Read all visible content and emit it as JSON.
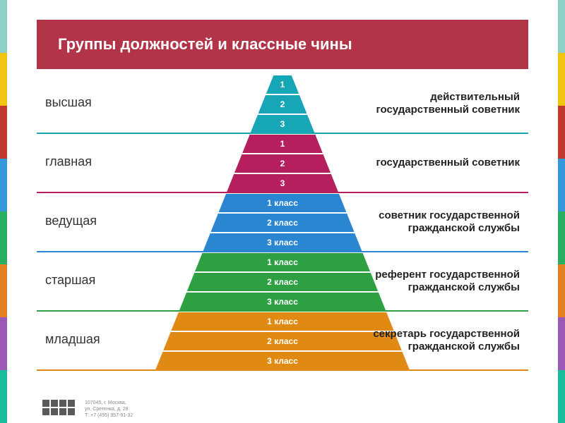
{
  "title": "Группы должностей и классные чины",
  "edge_colors": [
    "#8dd0c8",
    "#f1c40f",
    "#c0392b",
    "#3498db",
    "#27ae60",
    "#e67e22",
    "#9b59b6",
    "#1abc9c"
  ],
  "pyramid": {
    "width_start": 24,
    "width_end": 360,
    "layer_height": 28,
    "layers": [
      {
        "label": "1",
        "color": "#16a6b6"
      },
      {
        "label": "2",
        "color": "#16a6b6"
      },
      {
        "label": "3",
        "color": "#16a6b6"
      },
      {
        "label": "1",
        "color": "#b61f5e"
      },
      {
        "label": "2",
        "color": "#b61f5e"
      },
      {
        "label": "3",
        "color": "#b61f5e"
      },
      {
        "label": "1 класс",
        "color": "#2a86d1"
      },
      {
        "label": "2 класс",
        "color": "#2a86d1"
      },
      {
        "label": "3 класс",
        "color": "#2a86d1"
      },
      {
        "label": "1 класс",
        "color": "#2ea043"
      },
      {
        "label": "2 класс",
        "color": "#2ea043"
      },
      {
        "label": "3 класс",
        "color": "#2ea043"
      },
      {
        "label": "1 класс",
        "color": "#e08a14"
      },
      {
        "label": "2 класс",
        "color": "#e08a14"
      },
      {
        "label": "3 класс",
        "color": "#e08a14"
      }
    ]
  },
  "groups": [
    {
      "left": "высшая",
      "right": "действительный государственный советник",
      "sep_color": "#16a6b6"
    },
    {
      "left": "главная",
      "right": "государственный советник",
      "sep_color": "#b61f5e"
    },
    {
      "left": "ведущая",
      "right": "советник государственной гражданской службы",
      "sep_color": "#2a86d1"
    },
    {
      "left": "старшая",
      "right": "референт государственной гражданской службы",
      "sep_color": "#2ea043"
    },
    {
      "left": "младшая",
      "right": "секретарь государственной гражданской службы",
      "sep_color": "#e08a14"
    }
  ],
  "footer": {
    "line1": "107045, г. Москва,",
    "line2": "ул. Сретенка, д. 28",
    "line3": "Т: +7 (495) 957-91-32"
  }
}
